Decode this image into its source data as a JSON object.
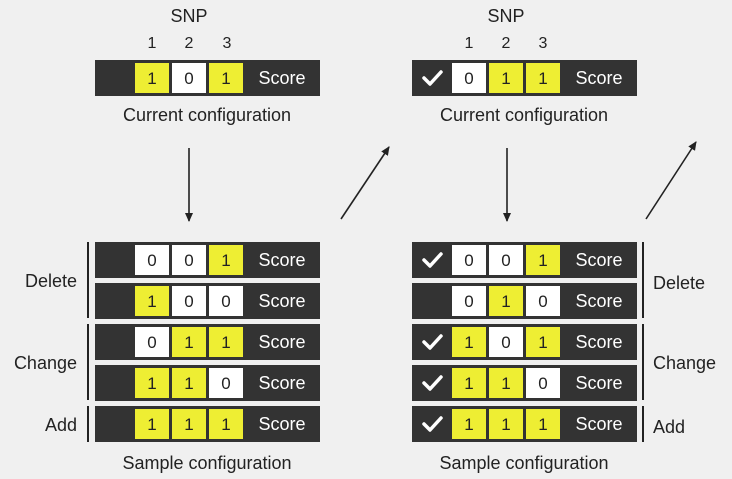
{
  "colors": {
    "dark": "#333333",
    "yellow": "#eeee33",
    "white": "#ffffff",
    "bg": "#f0f0f0"
  },
  "left": {
    "snp_title": "SNP",
    "snp_numbers": [
      "1",
      "2",
      "3"
    ],
    "current": {
      "check": false,
      "bits": [
        "1",
        "0",
        "1"
      ],
      "score": "Score"
    },
    "current_label": "Current configuration",
    "groups": [
      {
        "label": "Delete",
        "rows": [
          {
            "check": false,
            "bits": [
              "0",
              "0",
              "1"
            ],
            "score": "Score"
          },
          {
            "check": false,
            "bits": [
              "1",
              "0",
              "0"
            ],
            "score": "Score"
          }
        ]
      },
      {
        "label": "Change",
        "rows": [
          {
            "check": false,
            "bits": [
              "0",
              "1",
              "1"
            ],
            "score": "Score"
          },
          {
            "check": false,
            "bits": [
              "1",
              "1",
              "0"
            ],
            "score": "Score"
          }
        ]
      },
      {
        "label": "Add",
        "rows": [
          {
            "check": false,
            "bits": [
              "1",
              "1",
              "1"
            ],
            "score": "Score"
          }
        ]
      }
    ],
    "sample_label": "Sample configuration"
  },
  "right": {
    "snp_title": "SNP",
    "snp_numbers": [
      "1",
      "2",
      "3"
    ],
    "current": {
      "check": true,
      "bits": [
        "0",
        "1",
        "1"
      ],
      "score": "Score"
    },
    "current_label": "Current configuration",
    "groups": [
      {
        "label": "Delete",
        "rows": [
          {
            "check": true,
            "bits": [
              "0",
              "0",
              "1"
            ],
            "score": "Score"
          },
          {
            "check": false,
            "bits": [
              "0",
              "1",
              "0"
            ],
            "score": "Score"
          }
        ]
      },
      {
        "label": "Change",
        "rows": [
          {
            "check": true,
            "bits": [
              "1",
              "0",
              "1"
            ],
            "score": "Score"
          },
          {
            "check": true,
            "bits": [
              "1",
              "1",
              "0"
            ],
            "score": "Score"
          }
        ]
      },
      {
        "label": "Add",
        "rows": [
          {
            "check": true,
            "bits": [
              "1",
              "1",
              "1"
            ],
            "score": "Score"
          }
        ]
      }
    ],
    "sample_label": "Sample configuration"
  }
}
